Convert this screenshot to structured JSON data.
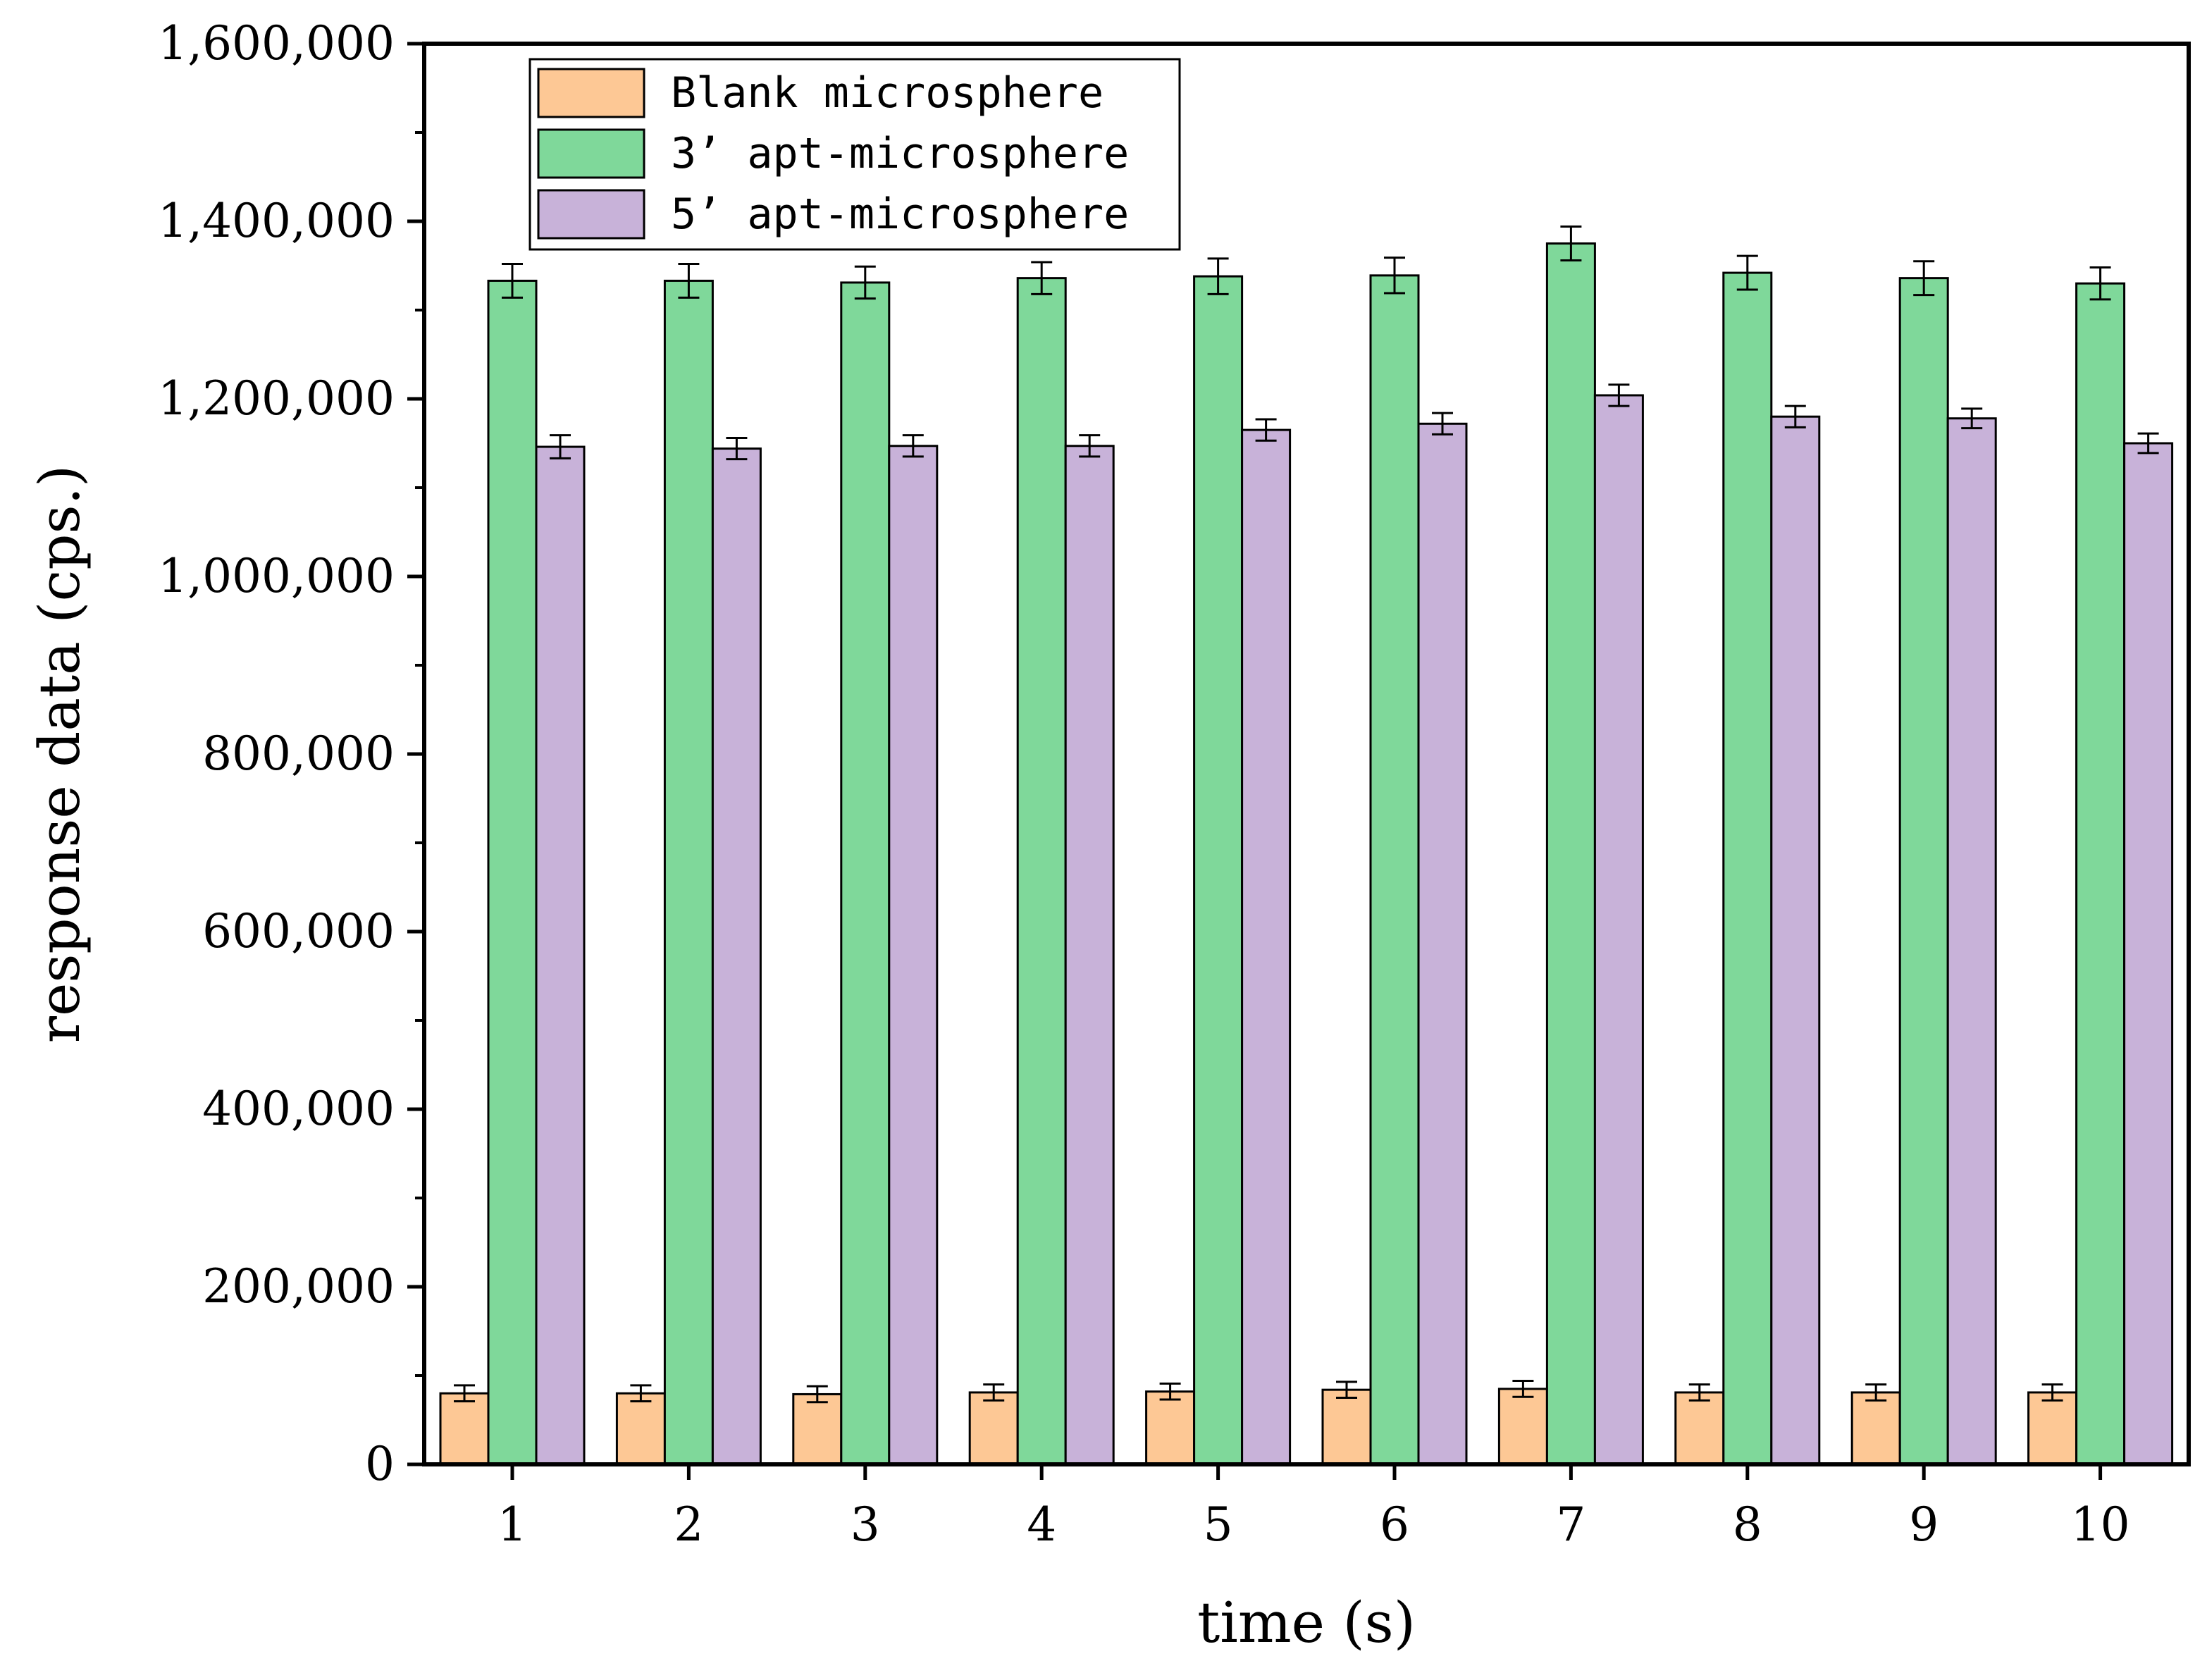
{
  "chart_data": {
    "type": "bar",
    "xlabel": "time (s)",
    "ylabel": "response data (cps.)",
    "categories": [
      "1",
      "2",
      "3",
      "4",
      "5",
      "6",
      "7",
      "8",
      "9",
      "10"
    ],
    "ylim": [
      0,
      1600000
    ],
    "yticks": [
      0,
      200000,
      400000,
      600000,
      800000,
      1000000,
      1200000,
      1400000,
      1600000
    ],
    "ytick_labels": [
      "0",
      "200,000",
      "400,000",
      "600,000",
      "800,000",
      "1,000,000",
      "1,200,000",
      "1,400,000",
      "1,600,000"
    ],
    "grid": false,
    "legend_position": "top-left",
    "series": [
      {
        "name": "Blank microsphere",
        "color": "#FDC895",
        "values": [
          80000,
          80000,
          79000,
          81000,
          82000,
          84000,
          85000,
          81000,
          81000,
          81000
        ],
        "errors": [
          9000,
          9000,
          9000,
          9000,
          9000,
          9000,
          9000,
          9000,
          9000,
          9000
        ]
      },
      {
        "name": "3’ apt-microsphere",
        "color": "#7FD89A",
        "values": [
          1333000,
          1333000,
          1331000,
          1336000,
          1338000,
          1339000,
          1375000,
          1342000,
          1336000,
          1330000
        ],
        "errors": [
          19000,
          19000,
          18000,
          18000,
          20000,
          20000,
          19000,
          19000,
          19000,
          18000
        ]
      },
      {
        "name": "5’ apt-microsphere",
        "color": "#C8B2D9",
        "values": [
          1146000,
          1144000,
          1147000,
          1147000,
          1165000,
          1172000,
          1204000,
          1180000,
          1178000,
          1150000
        ],
        "errors": [
          13000,
          12000,
          12000,
          12000,
          12000,
          12000,
          12000,
          12000,
          11000,
          11000
        ]
      }
    ]
  }
}
